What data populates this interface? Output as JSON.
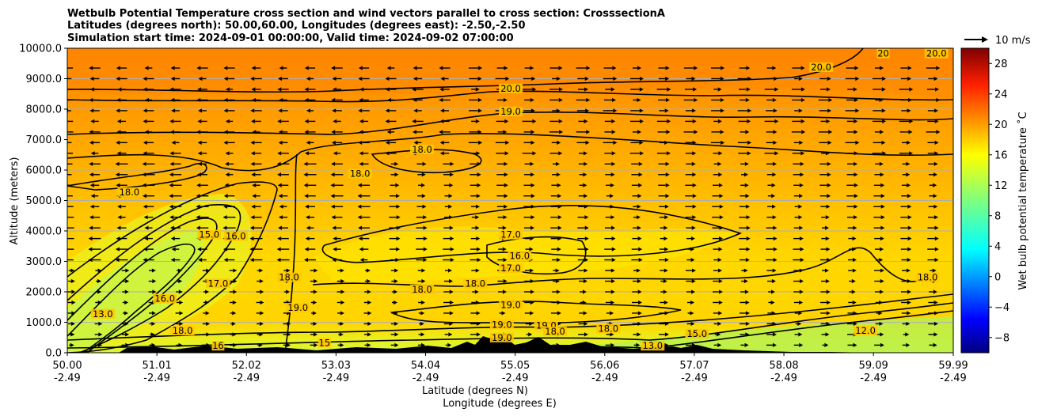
{
  "chart_data": {
    "type": "contour",
    "title": [
      "Wetbulb Potential Temperature cross section and wind vectors parallel to cross section: CrosssectionA",
      "Latitudes (degrees north): 50.00,60.00, Longitudes (degrees east): -2.50,-2.50",
      "Simulation start time: 2024-09-01 00:00:00, Valid time: 2024-09-02 07:00:00"
    ],
    "xlabel": "Latitude (degrees N)",
    "xlabel2": "Longitude (degrees E)",
    "ylabel": "Altitude (meters)",
    "xlim": [
      50.0,
      59.99
    ],
    "ylim": [
      0,
      10000
    ],
    "x_ticks": [
      {
        "lat": "50.00",
        "lon": "-2.49"
      },
      {
        "lat": "51.01",
        "lon": "-2.49"
      },
      {
        "lat": "52.02",
        "lon": "-2.49"
      },
      {
        "lat": "53.03",
        "lon": "-2.49"
      },
      {
        "lat": "54.04",
        "lon": "-2.49"
      },
      {
        "lat": "55.05",
        "lon": "-2.49"
      },
      {
        "lat": "56.06",
        "lon": "-2.49"
      },
      {
        "lat": "57.07",
        "lon": "-2.49"
      },
      {
        "lat": "58.08",
        "lon": "-2.49"
      },
      {
        "lat": "59.09",
        "lon": "-2.49"
      },
      {
        "lat": "59.99",
        "lon": "-2.49"
      }
    ],
    "y_ticks": [
      "0.0",
      "1000.0",
      "2000.0",
      "3000.0",
      "4000.0",
      "5000.0",
      "6000.0",
      "7000.0",
      "8000.0",
      "9000.0",
      "10000.0"
    ],
    "grid": true,
    "colorbar": {
      "label": "Wet bulb potential temperature ˚C",
      "range": [
        -10,
        30
      ],
      "ticks": [
        "28",
        "24",
        "20",
        "16",
        "12",
        "8",
        "4",
        "0",
        "−4",
        "−8"
      ],
      "colormap": "jet"
    },
    "quiver_key": {
      "label": "10 m/s",
      "value": 10
    },
    "contour_labels": [
      {
        "text": "20.0",
        "lat": 55.0,
        "alt": 8600
      },
      {
        "text": "19.0",
        "lat": 55.0,
        "alt": 7850
      },
      {
        "text": "20.0",
        "lat": 58.5,
        "alt": 9300
      },
      {
        "text": "20",
        "lat": 59.2,
        "alt": 9750
      },
      {
        "text": "20.0",
        "lat": 59.8,
        "alt": 9750
      },
      {
        "text": "18.0",
        "lat": 50.7,
        "alt": 5200
      },
      {
        "text": "18.0",
        "lat": 53.3,
        "alt": 5800
      },
      {
        "text": "18.0",
        "lat": 54.0,
        "alt": 6600
      },
      {
        "text": "15.0",
        "lat": 51.6,
        "alt": 3800
      },
      {
        "text": "16.0",
        "lat": 51.9,
        "alt": 3750
      },
      {
        "text": "17.0",
        "lat": 55.0,
        "alt": 3800
      },
      {
        "text": "16.0",
        "lat": 55.1,
        "alt": 3100
      },
      {
        "text": "17.0",
        "lat": 55.0,
        "alt": 2700
      },
      {
        "text": "18.0",
        "lat": 54.6,
        "alt": 2200
      },
      {
        "text": "18.0",
        "lat": 54.0,
        "alt": 2000
      },
      {
        "text": "19.0",
        "lat": 55.0,
        "alt": 1500
      },
      {
        "text": "17.0",
        "lat": 51.7,
        "alt": 2200
      },
      {
        "text": "16.0",
        "lat": 51.1,
        "alt": 1700
      },
      {
        "text": "13.0",
        "lat": 50.4,
        "alt": 1200
      },
      {
        "text": "18.0",
        "lat": 52.5,
        "alt": 2400
      },
      {
        "text": "19.0",
        "lat": 52.6,
        "alt": 1400
      },
      {
        "text": "18.0",
        "lat": 51.3,
        "alt": 650
      },
      {
        "text": "16",
        "lat": 51.7,
        "alt": 150
      },
      {
        "text": "15",
        "lat": 52.9,
        "alt": 250
      },
      {
        "text": "19.0",
        "lat": 54.9,
        "alt": 850
      },
      {
        "text": "19.0",
        "lat": 55.4,
        "alt": 820
      },
      {
        "text": "18.0",
        "lat": 55.5,
        "alt": 620
      },
      {
        "text": "19.0",
        "lat": 54.9,
        "alt": 420
      },
      {
        "text": "18.0",
        "lat": 56.1,
        "alt": 720
      },
      {
        "text": "13.0",
        "lat": 56.6,
        "alt": 150
      },
      {
        "text": "15.0",
        "lat": 57.1,
        "alt": 550
      },
      {
        "text": "12.0",
        "lat": 59.0,
        "alt": 650
      },
      {
        "text": "18.0",
        "lat": 59.7,
        "alt": 2400
      }
    ]
  }
}
